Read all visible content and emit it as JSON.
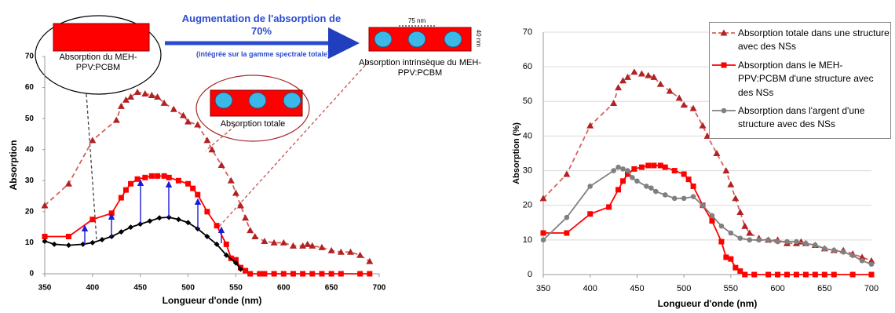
{
  "chart_data": [
    {
      "type": "line",
      "xlabel": "Longueur d'onde (nm)",
      "ylabel": "Absorption",
      "xlim": [
        350,
        700
      ],
      "ylim": [
        0,
        70
      ],
      "xticks": [
        350,
        400,
        450,
        500,
        550,
        600,
        650,
        700
      ],
      "yticks": [
        0,
        10,
        20,
        30,
        40,
        50,
        60,
        70
      ],
      "annotations": [
        "Augmentation de l'absorption de 70%",
        "(intégrée sur la gamme spectrale totale)",
        "Absorption du MEH-PPV:PCBM",
        "Absorption intrinsèque du MEH-PPV:PCBM",
        "Absorption totale",
        "75 nm",
        "40 nm"
      ],
      "series": [
        {
          "color": "#b22222",
          "marker": "triangle",
          "dashed": true,
          "x": [
            350,
            375,
            400,
            425,
            430,
            435,
            440,
            447,
            455,
            462,
            468,
            475,
            485,
            495,
            500,
            510,
            520,
            525,
            535,
            545,
            550,
            555,
            560,
            565,
            570,
            580,
            590,
            600,
            610,
            620,
            625,
            630,
            640,
            650,
            660,
            670,
            680,
            690
          ],
          "values": [
            22,
            29,
            43,
            49.5,
            54,
            56,
            57,
            58.5,
            58,
            57.5,
            57,
            55,
            53,
            51,
            49,
            48,
            43,
            40,
            35,
            30,
            26,
            22,
            18,
            14,
            12,
            10.5,
            10,
            10,
            9,
            9,
            9.5,
            9,
            8.5,
            7.5,
            7,
            7,
            6,
            4
          ]
        },
        {
          "color": "#ff0000",
          "marker": "square",
          "dashed": false,
          "x": [
            350,
            375,
            400,
            420,
            430,
            435,
            440,
            447,
            455,
            462,
            468,
            475,
            480,
            490,
            500,
            505,
            510,
            520,
            530,
            540,
            545,
            550,
            555,
            560,
            565,
            575,
            580,
            590,
            600,
            610,
            620,
            630,
            640,
            650,
            660,
            680,
            690
          ],
          "values": [
            12,
            12,
            17.5,
            19.5,
            24.5,
            27,
            29,
            30.5,
            31,
            31.5,
            31.5,
            31.5,
            31,
            30,
            29,
            27.5,
            25.5,
            20,
            15.5,
            9.5,
            5,
            4.5,
            2,
            1,
            0,
            0,
            0,
            0,
            0,
            0,
            0,
            0,
            0,
            0,
            0,
            0,
            0
          ]
        },
        {
          "color": "#000000",
          "marker": "diamond",
          "dashed": false,
          "x": [
            350,
            360,
            375,
            390,
            400,
            410,
            420,
            430,
            440,
            450,
            460,
            470,
            480,
            490,
            500,
            510,
            520,
            530,
            540,
            550,
            555
          ],
          "values": [
            10.5,
            9.5,
            9.2,
            9.5,
            10,
            11,
            12,
            13.5,
            15,
            16,
            17,
            18,
            18.2,
            17.5,
            16.5,
            14.5,
            12,
            9.5,
            6,
            3.5,
            1.5
          ]
        }
      ]
    },
    {
      "type": "line",
      "xlabel": "Longueur d'onde (nm)",
      "ylabel": "Absorption (%)",
      "xlim": [
        350,
        700
      ],
      "ylim": [
        0,
        70
      ],
      "xticks": [
        350,
        400,
        450,
        500,
        550,
        600,
        650,
        700
      ],
      "yticks": [
        0,
        10,
        20,
        30,
        40,
        50,
        60,
        70
      ],
      "grid": true,
      "legend": "upper right",
      "series": [
        {
          "name": "Absorption totale dans une structure avec des NSs",
          "color": "#b22222",
          "marker": "triangle",
          "dashed": true,
          "x": [
            350,
            375,
            400,
            425,
            430,
            435,
            440,
            447,
            455,
            462,
            468,
            475,
            485,
            495,
            500,
            510,
            520,
            525,
            535,
            545,
            550,
            555,
            560,
            565,
            570,
            580,
            590,
            600,
            610,
            620,
            625,
            630,
            640,
            650,
            660,
            670,
            680,
            690,
            700
          ],
          "values": [
            22,
            29,
            43,
            49.5,
            54,
            56,
            57,
            58.5,
            58,
            57.5,
            57,
            55,
            53,
            51,
            49,
            48,
            43,
            40,
            35,
            30,
            26,
            22,
            18,
            14,
            12,
            10.5,
            10,
            10,
            9,
            9,
            9.5,
            9,
            8.5,
            7.5,
            7,
            7,
            6,
            5,
            4
          ]
        },
        {
          "name": "Absorption dans le MEH-PPV:PCBM d'une structure avec des NSs",
          "color": "#ff0000",
          "marker": "square",
          "dashed": false,
          "x": [
            350,
            375,
            400,
            420,
            430,
            435,
            440,
            447,
            455,
            462,
            468,
            475,
            480,
            490,
            500,
            505,
            510,
            520,
            530,
            540,
            545,
            550,
            555,
            560,
            565,
            575,
            590,
            600,
            610,
            620,
            630,
            640,
            650,
            660,
            680,
            700
          ],
          "values": [
            12,
            12,
            17.5,
            19.5,
            24.5,
            27,
            29,
            30.5,
            31,
            31.5,
            31.5,
            31.5,
            31,
            30,
            29,
            27.5,
            25.5,
            20,
            15.5,
            9.5,
            5,
            4.5,
            2,
            1,
            0,
            0,
            0,
            0,
            0,
            0,
            0,
            0,
            0,
            0,
            0,
            0
          ]
        },
        {
          "name": "Absorption dans l'argent d'une structure avec des NSs",
          "color": "#808080",
          "marker": "circle",
          "dashed": false,
          "x": [
            350,
            375,
            400,
            425,
            430,
            435,
            440,
            445,
            450,
            460,
            465,
            470,
            480,
            490,
            500,
            510,
            520,
            530,
            540,
            550,
            560,
            570,
            580,
            590,
            600,
            610,
            620,
            630,
            640,
            650,
            660,
            670,
            680,
            690,
            700
          ],
          "values": [
            10,
            16.5,
            25.5,
            30,
            31,
            30.5,
            30,
            28,
            27,
            25.5,
            25,
            24,
            23,
            22,
            22,
            22.5,
            20,
            17,
            14,
            12,
            10.5,
            10,
            10,
            10,
            9.5,
            9.5,
            9.5,
            9,
            8.5,
            7.5,
            7,
            6.5,
            5.5,
            4,
            3
          ]
        }
      ]
    }
  ]
}
